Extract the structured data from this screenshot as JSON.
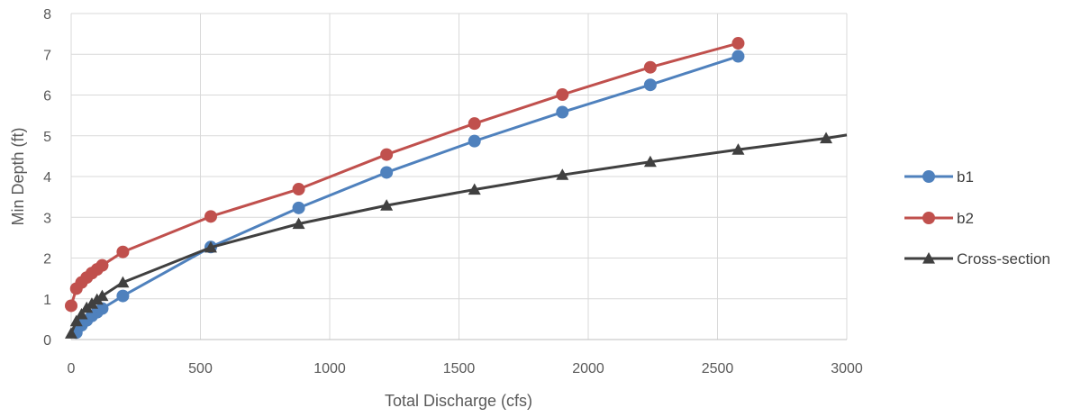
{
  "chart_data": {
    "type": "line",
    "title": "",
    "xlabel": "Total Discharge (cfs)",
    "ylabel": "Min Depth (ft)",
    "xlim": [
      0,
      3000
    ],
    "ylim": [
      0,
      8
    ],
    "xticks": [
      0,
      500,
      1000,
      1500,
      2000,
      2500,
      3000
    ],
    "yticks": [
      0,
      1,
      2,
      3,
      4,
      5,
      6,
      7,
      8
    ],
    "grid": true,
    "legend_position": "right",
    "series": [
      {
        "name": "b1",
        "color": "#4f81bd",
        "marker": "circle",
        "x": [
          20,
          40,
          60,
          80,
          100,
          120,
          200,
          540,
          880,
          1220,
          1560,
          1900,
          2240,
          2580
        ],
        "y": [
          0.17,
          0.35,
          0.47,
          0.58,
          0.67,
          0.76,
          1.07,
          2.27,
          3.23,
          4.1,
          4.87,
          5.58,
          6.25,
          6.95
        ]
      },
      {
        "name": "b2",
        "color": "#c0504d",
        "marker": "circle",
        "x": [
          0,
          20,
          40,
          60,
          80,
          100,
          120,
          200,
          540,
          880,
          1220,
          1560,
          1900,
          2240,
          2580
        ],
        "y": [
          0.83,
          1.25,
          1.4,
          1.52,
          1.63,
          1.72,
          1.82,
          2.15,
          3.02,
          3.69,
          4.54,
          5.3,
          6.01,
          6.68,
          7.27
        ]
      },
      {
        "name": "Cross-section",
        "color": "#404040",
        "marker": "triangle",
        "x": [
          0,
          20,
          40,
          60,
          80,
          100,
          120,
          200,
          540,
          880,
          1220,
          1560,
          1900,
          2240,
          2580,
          2920,
          3000
        ],
        "y": [
          0.15,
          0.45,
          0.62,
          0.78,
          0.88,
          0.98,
          1.07,
          1.4,
          2.26,
          2.84,
          3.29,
          3.68,
          4.04,
          4.36,
          4.66,
          4.94,
          5.02
        ]
      }
    ]
  }
}
